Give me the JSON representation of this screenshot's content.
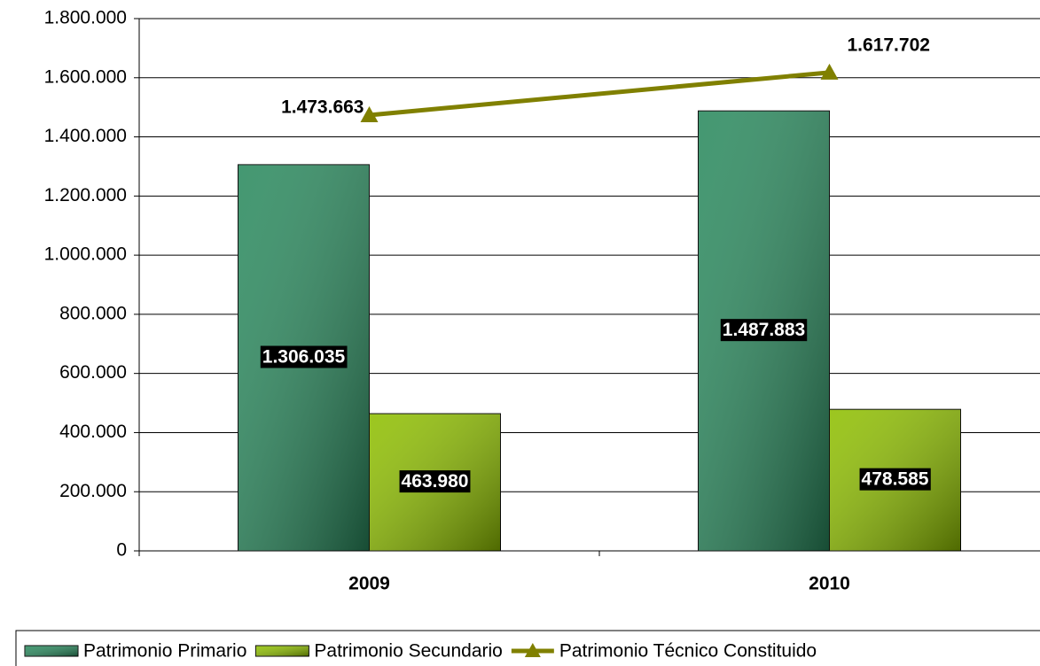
{
  "chart_data": {
    "type": "bar",
    "categories": [
      "2009",
      "2010"
    ],
    "series": [
      {
        "name": "Patrimonio Primario",
        "type": "bar",
        "color": "#2a8a5e",
        "values": [
          1306035,
          1487883
        ],
        "value_labels": [
          "1.306.035",
          "1.487.883"
        ]
      },
      {
        "name": "Patrimonio Secundario",
        "type": "bar",
        "color": "#8fbf00",
        "values": [
          463980,
          478585
        ],
        "value_labels": [
          "463.980",
          "478.585"
        ]
      },
      {
        "name": "Patrimonio Técnico Constituido",
        "type": "line",
        "color": "#808000",
        "values": [
          1473663,
          1617702
        ],
        "value_labels": [
          "1.473.663",
          "1.617.702"
        ]
      }
    ],
    "ylim": [
      0,
      1800000
    ],
    "yticks": [
      0,
      {
        "value": 200000,
        "label": "200.000"
      },
      {
        "value": 400000,
        "label": "400.000"
      },
      {
        "value": 600000,
        "label": "600.000"
      },
      {
        "value": 800000,
        "label": "800.000"
      },
      {
        "value": 1000000,
        "label": "1.000.000"
      },
      {
        "value": 1200000,
        "label": "1.200.000"
      },
      {
        "value": 1400000,
        "label": "1.400.000"
      },
      {
        "value": 1600000,
        "label": "1.600.000"
      },
      {
        "value": 1800000,
        "label": "1.800.000"
      }
    ],
    "grid": true,
    "legend": "bottom"
  }
}
